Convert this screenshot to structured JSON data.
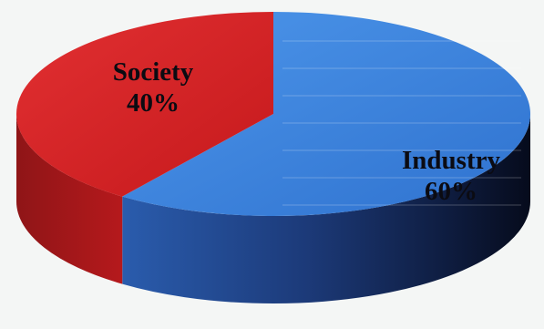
{
  "chart_data": {
    "type": "pie",
    "title": "",
    "slices": [
      {
        "name": "Industry",
        "value": 60,
        "value_label": "60%",
        "color": "#3a83de"
      },
      {
        "name": "Society",
        "value": 40,
        "value_label": "40%",
        "color": "#d51f22"
      }
    ],
    "style": "3d-tilted",
    "legend": "none"
  }
}
